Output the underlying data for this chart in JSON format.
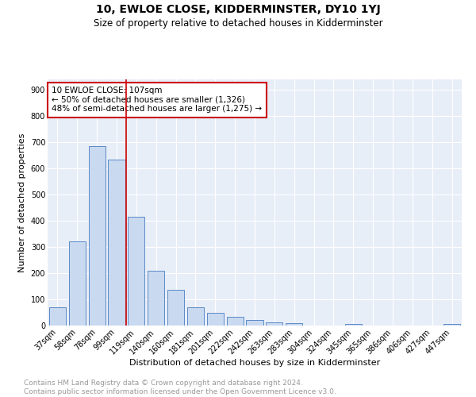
{
  "title": "10, EWLOE CLOSE, KIDDERMINSTER, DY10 1YJ",
  "subtitle": "Size of property relative to detached houses in Kidderminster",
  "xlabel": "Distribution of detached houses by size in Kidderminster",
  "ylabel": "Number of detached properties",
  "categories": [
    "37sqm",
    "58sqm",
    "78sqm",
    "99sqm",
    "119sqm",
    "140sqm",
    "160sqm",
    "181sqm",
    "201sqm",
    "222sqm",
    "242sqm",
    "263sqm",
    "283sqm",
    "304sqm",
    "324sqm",
    "345sqm",
    "365sqm",
    "386sqm",
    "406sqm",
    "427sqm",
    "447sqm"
  ],
  "values": [
    70,
    320,
    685,
    635,
    415,
    210,
    137,
    70,
    48,
    33,
    22,
    12,
    8,
    0,
    0,
    7,
    0,
    0,
    0,
    0,
    7
  ],
  "bar_color": "#c9d9f0",
  "bar_edge_color": "#5a8ac6",
  "vline_x": 4.0,
  "vline_color": "#cc0000",
  "annotation_text": "10 EWLOE CLOSE: 107sqm\n← 50% of detached houses are smaller (1,326)\n48% of semi-detached houses are larger (1,275) →",
  "annotation_box_color": "#ffffff",
  "annotation_box_edge_color": "#cc0000",
  "ylim": [
    0,
    940
  ],
  "yticks": [
    0,
    100,
    200,
    300,
    400,
    500,
    600,
    700,
    800,
    900
  ],
  "background_color": "#e8eef8",
  "grid_color": "#ffffff",
  "footer_text": "Contains HM Land Registry data © Crown copyright and database right 2024.\nContains public sector information licensed under the Open Government Licence v3.0.",
  "title_fontsize": 10,
  "subtitle_fontsize": 8.5,
  "xlabel_fontsize": 8,
  "ylabel_fontsize": 8,
  "tick_fontsize": 7,
  "annotation_fontsize": 7.5,
  "footer_fontsize": 6.5
}
